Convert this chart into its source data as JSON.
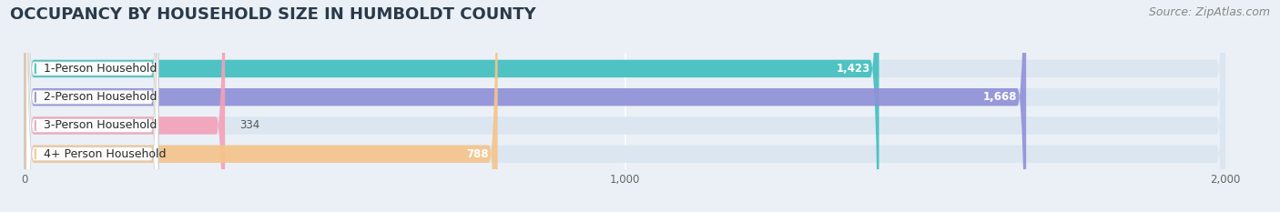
{
  "title": "OCCUPANCY BY HOUSEHOLD SIZE IN HUMBOLDT COUNTY",
  "source": "Source: ZipAtlas.com",
  "categories": [
    "1-Person Household",
    "2-Person Household",
    "3-Person Household",
    "4+ Person Household"
  ],
  "values": [
    1423,
    1668,
    334,
    788
  ],
  "bar_colors": [
    "#40BFBF",
    "#9090D8",
    "#F4A0B8",
    "#F5C48A"
  ],
  "xlim_min": -30,
  "xlim_max": 2080,
  "xticks": [
    0,
    1000,
    2000
  ],
  "xtick_labels": [
    "0",
    "1,000",
    "2,000"
  ],
  "bar_height": 0.62,
  "figsize": [
    14.06,
    2.33
  ],
  "dpi": 100,
  "background_color": "#eaf0f6",
  "bar_bg_color": "#dce6f0",
  "bar_max": 2000,
  "title_fontsize": 13,
  "source_fontsize": 9,
  "label_fontsize": 9,
  "value_fontsize": 8.5
}
